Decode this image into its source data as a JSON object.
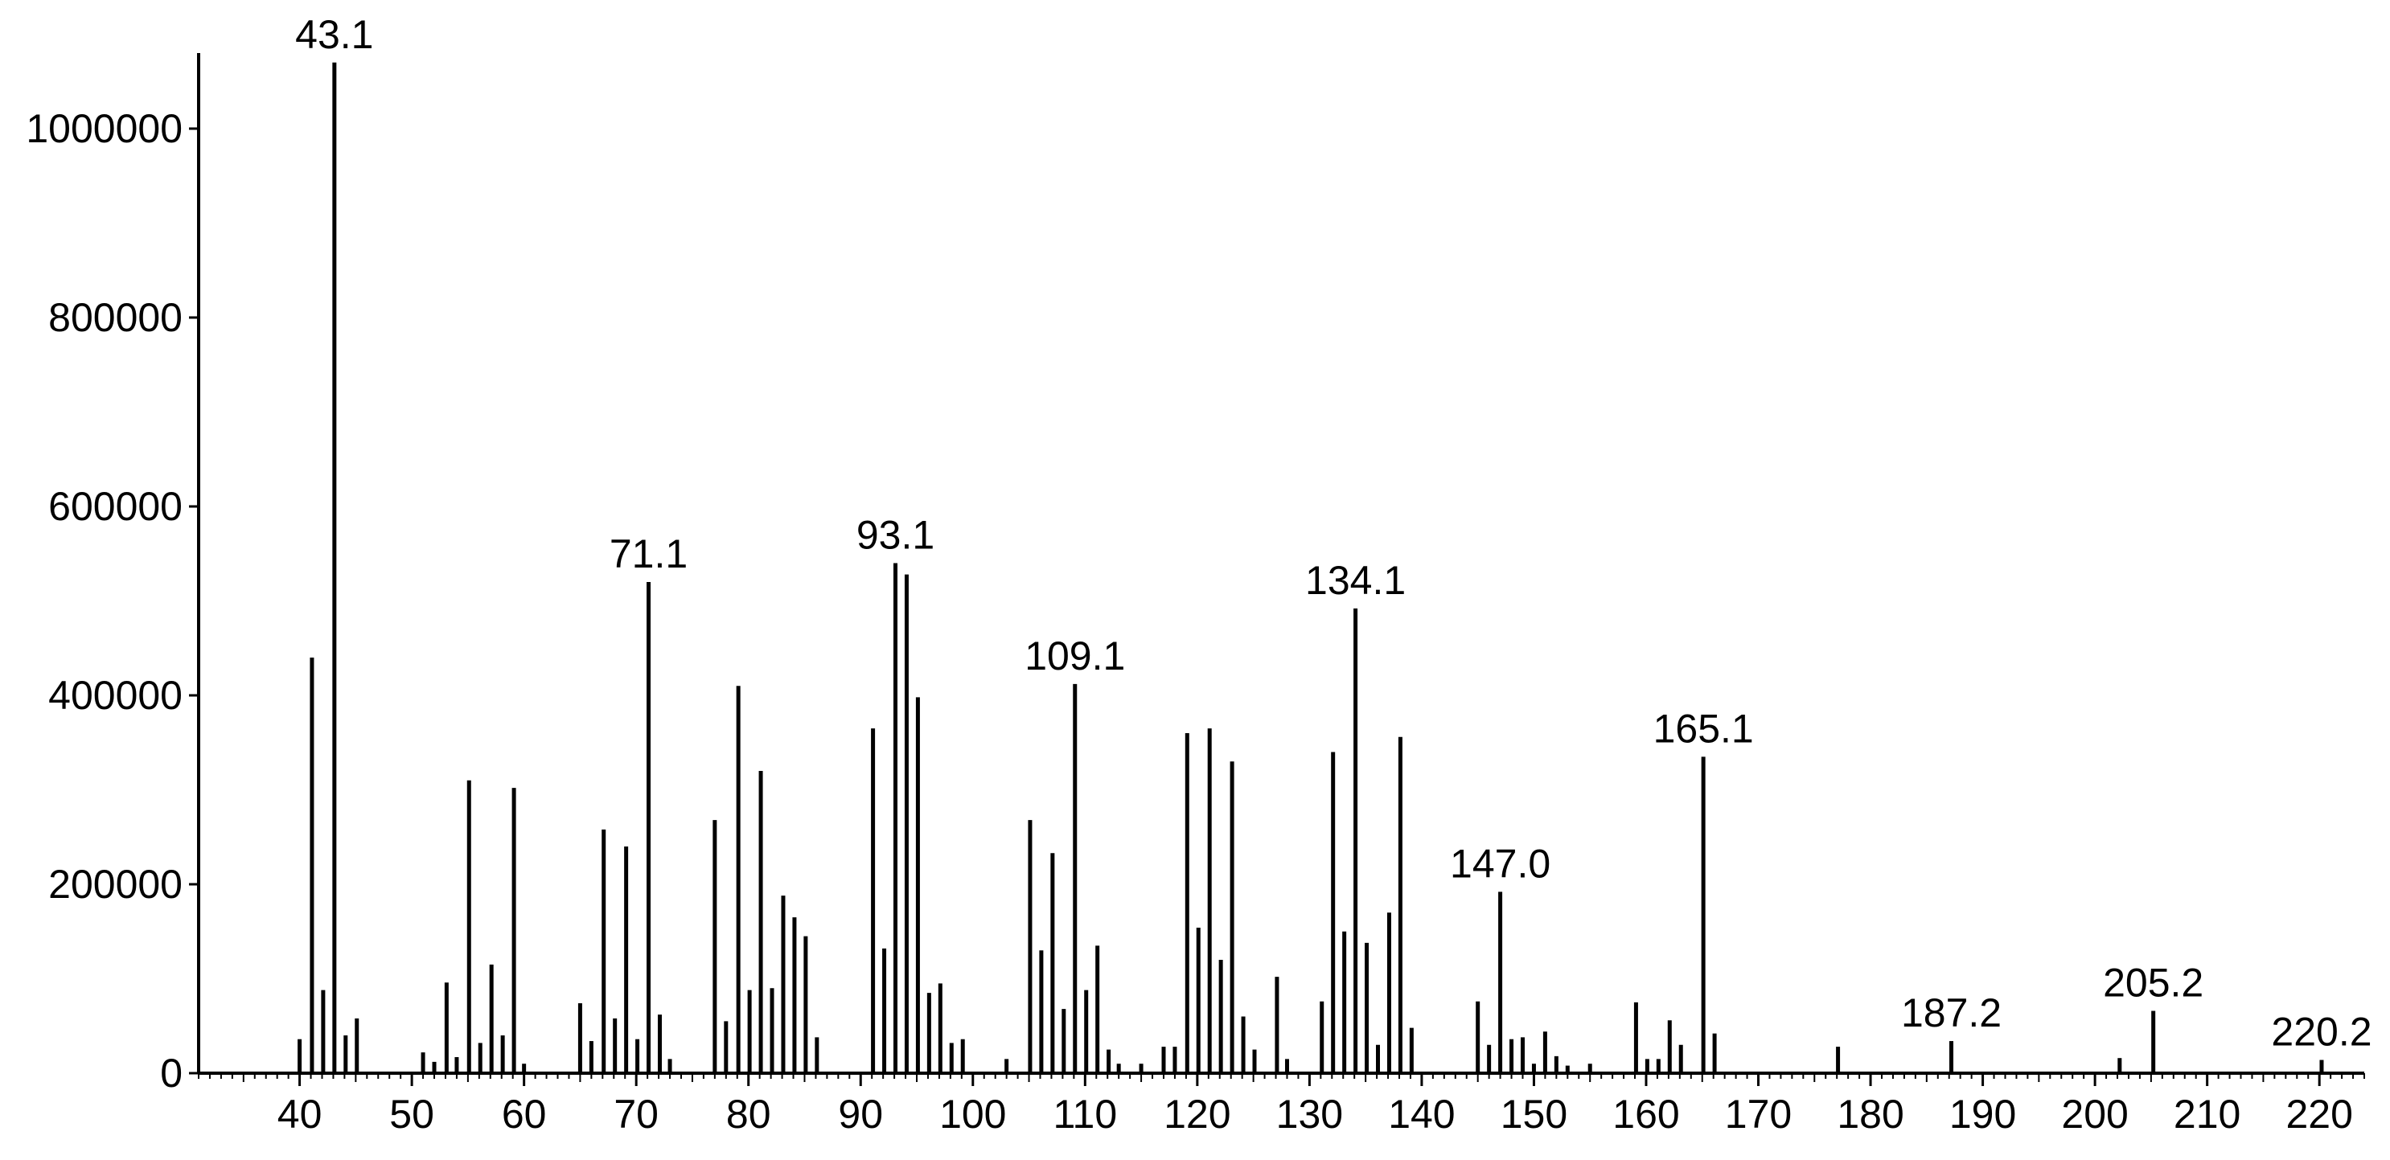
{
  "chart_data": {
    "type": "bar",
    "title": "",
    "xlabel": "",
    "ylabel": "",
    "xlim": [
      31,
      224
    ],
    "ylim": [
      0,
      1080000
    ],
    "grid": false,
    "legend": "none",
    "color": "#000000",
    "x_ticks": [
      40,
      50,
      60,
      70,
      80,
      90,
      100,
      110,
      120,
      130,
      140,
      150,
      160,
      170,
      180,
      190,
      200,
      210,
      220
    ],
    "y_ticks": [
      0,
      200000,
      400000,
      600000,
      800000,
      1000000
    ],
    "peaks": [
      {
        "x": 40.0,
        "y": 36000
      },
      {
        "x": 41.1,
        "y": 440000
      },
      {
        "x": 42.1,
        "y": 88000
      },
      {
        "x": 43.1,
        "y": 1070000,
        "label": "43.1"
      },
      {
        "x": 44.1,
        "y": 40000
      },
      {
        "x": 45.1,
        "y": 58000
      },
      {
        "x": 51.0,
        "y": 22000
      },
      {
        "x": 52.0,
        "y": 12000
      },
      {
        "x": 53.1,
        "y": 96000
      },
      {
        "x": 54.0,
        "y": 17000
      },
      {
        "x": 55.1,
        "y": 310000
      },
      {
        "x": 56.1,
        "y": 32000
      },
      {
        "x": 57.1,
        "y": 115000
      },
      {
        "x": 58.1,
        "y": 40000
      },
      {
        "x": 59.1,
        "y": 302000
      },
      {
        "x": 60.0,
        "y": 10000
      },
      {
        "x": 65.0,
        "y": 74000
      },
      {
        "x": 66.0,
        "y": 34000
      },
      {
        "x": 67.1,
        "y": 258000
      },
      {
        "x": 68.1,
        "y": 58000
      },
      {
        "x": 69.1,
        "y": 240000
      },
      {
        "x": 70.1,
        "y": 36000
      },
      {
        "x": 71.1,
        "y": 520000,
        "label": "71.1"
      },
      {
        "x": 72.1,
        "y": 62000
      },
      {
        "x": 73.0,
        "y": 15000
      },
      {
        "x": 77.0,
        "y": 268000
      },
      {
        "x": 78.0,
        "y": 55000
      },
      {
        "x": 79.1,
        "y": 410000
      },
      {
        "x": 80.1,
        "y": 88000
      },
      {
        "x": 81.1,
        "y": 320000
      },
      {
        "x": 82.1,
        "y": 90000
      },
      {
        "x": 83.1,
        "y": 188000
      },
      {
        "x": 84.1,
        "y": 165000
      },
      {
        "x": 85.1,
        "y": 145000
      },
      {
        "x": 86.1,
        "y": 38000
      },
      {
        "x": 91.1,
        "y": 365000
      },
      {
        "x": 92.1,
        "y": 132000
      },
      {
        "x": 93.1,
        "y": 540000,
        "label": "93.1"
      },
      {
        "x": 94.1,
        "y": 528000
      },
      {
        "x": 95.1,
        "y": 398000
      },
      {
        "x": 96.1,
        "y": 85000
      },
      {
        "x": 97.1,
        "y": 95000
      },
      {
        "x": 98.1,
        "y": 32000
      },
      {
        "x": 99.1,
        "y": 36000
      },
      {
        "x": 103.0,
        "y": 15000
      },
      {
        "x": 105.1,
        "y": 268000
      },
      {
        "x": 106.1,
        "y": 130000
      },
      {
        "x": 107.1,
        "y": 233000
      },
      {
        "x": 108.1,
        "y": 68000
      },
      {
        "x": 109.1,
        "y": 412000,
        "label": "109.1"
      },
      {
        "x": 110.1,
        "y": 88000
      },
      {
        "x": 111.1,
        "y": 135000
      },
      {
        "x": 112.1,
        "y": 25000
      },
      {
        "x": 113.0,
        "y": 10000
      },
      {
        "x": 115.0,
        "y": 10000
      },
      {
        "x": 117.0,
        "y": 28000
      },
      {
        "x": 118.0,
        "y": 28000
      },
      {
        "x": 119.1,
        "y": 360000
      },
      {
        "x": 120.1,
        "y": 154000
      },
      {
        "x": 121.1,
        "y": 365000
      },
      {
        "x": 122.1,
        "y": 120000
      },
      {
        "x": 123.1,
        "y": 330000
      },
      {
        "x": 124.1,
        "y": 60000
      },
      {
        "x": 125.1,
        "y": 25000
      },
      {
        "x": 127.1,
        "y": 102000
      },
      {
        "x": 128.0,
        "y": 15000
      },
      {
        "x": 131.1,
        "y": 76000
      },
      {
        "x": 132.1,
        "y": 340000
      },
      {
        "x": 133.1,
        "y": 150000
      },
      {
        "x": 134.1,
        "y": 492000,
        "label": "134.1"
      },
      {
        "x": 135.1,
        "y": 138000
      },
      {
        "x": 136.1,
        "y": 30000
      },
      {
        "x": 137.1,
        "y": 170000
      },
      {
        "x": 138.1,
        "y": 356000
      },
      {
        "x": 139.1,
        "y": 48000
      },
      {
        "x": 145.0,
        "y": 76000
      },
      {
        "x": 146.0,
        "y": 30000
      },
      {
        "x": 147.0,
        "y": 192000,
        "label": "147.0"
      },
      {
        "x": 148.0,
        "y": 36000
      },
      {
        "x": 149.0,
        "y": 38000
      },
      {
        "x": 150.0,
        "y": 10000
      },
      {
        "x": 151.0,
        "y": 44000
      },
      {
        "x": 152.0,
        "y": 18000
      },
      {
        "x": 153.0,
        "y": 8000
      },
      {
        "x": 155.0,
        "y": 10000
      },
      {
        "x": 159.1,
        "y": 75000
      },
      {
        "x": 160.1,
        "y": 15000
      },
      {
        "x": 161.1,
        "y": 15000
      },
      {
        "x": 162.1,
        "y": 56000
      },
      {
        "x": 163.1,
        "y": 30000
      },
      {
        "x": 165.1,
        "y": 335000,
        "label": "165.1"
      },
      {
        "x": 166.1,
        "y": 42000
      },
      {
        "x": 177.1,
        "y": 28000
      },
      {
        "x": 187.2,
        "y": 34000,
        "label": "187.2"
      },
      {
        "x": 202.2,
        "y": 16000
      },
      {
        "x": 205.2,
        "y": 66000,
        "label": "205.2"
      },
      {
        "x": 220.2,
        "y": 14000,
        "label": "220.2"
      }
    ]
  }
}
